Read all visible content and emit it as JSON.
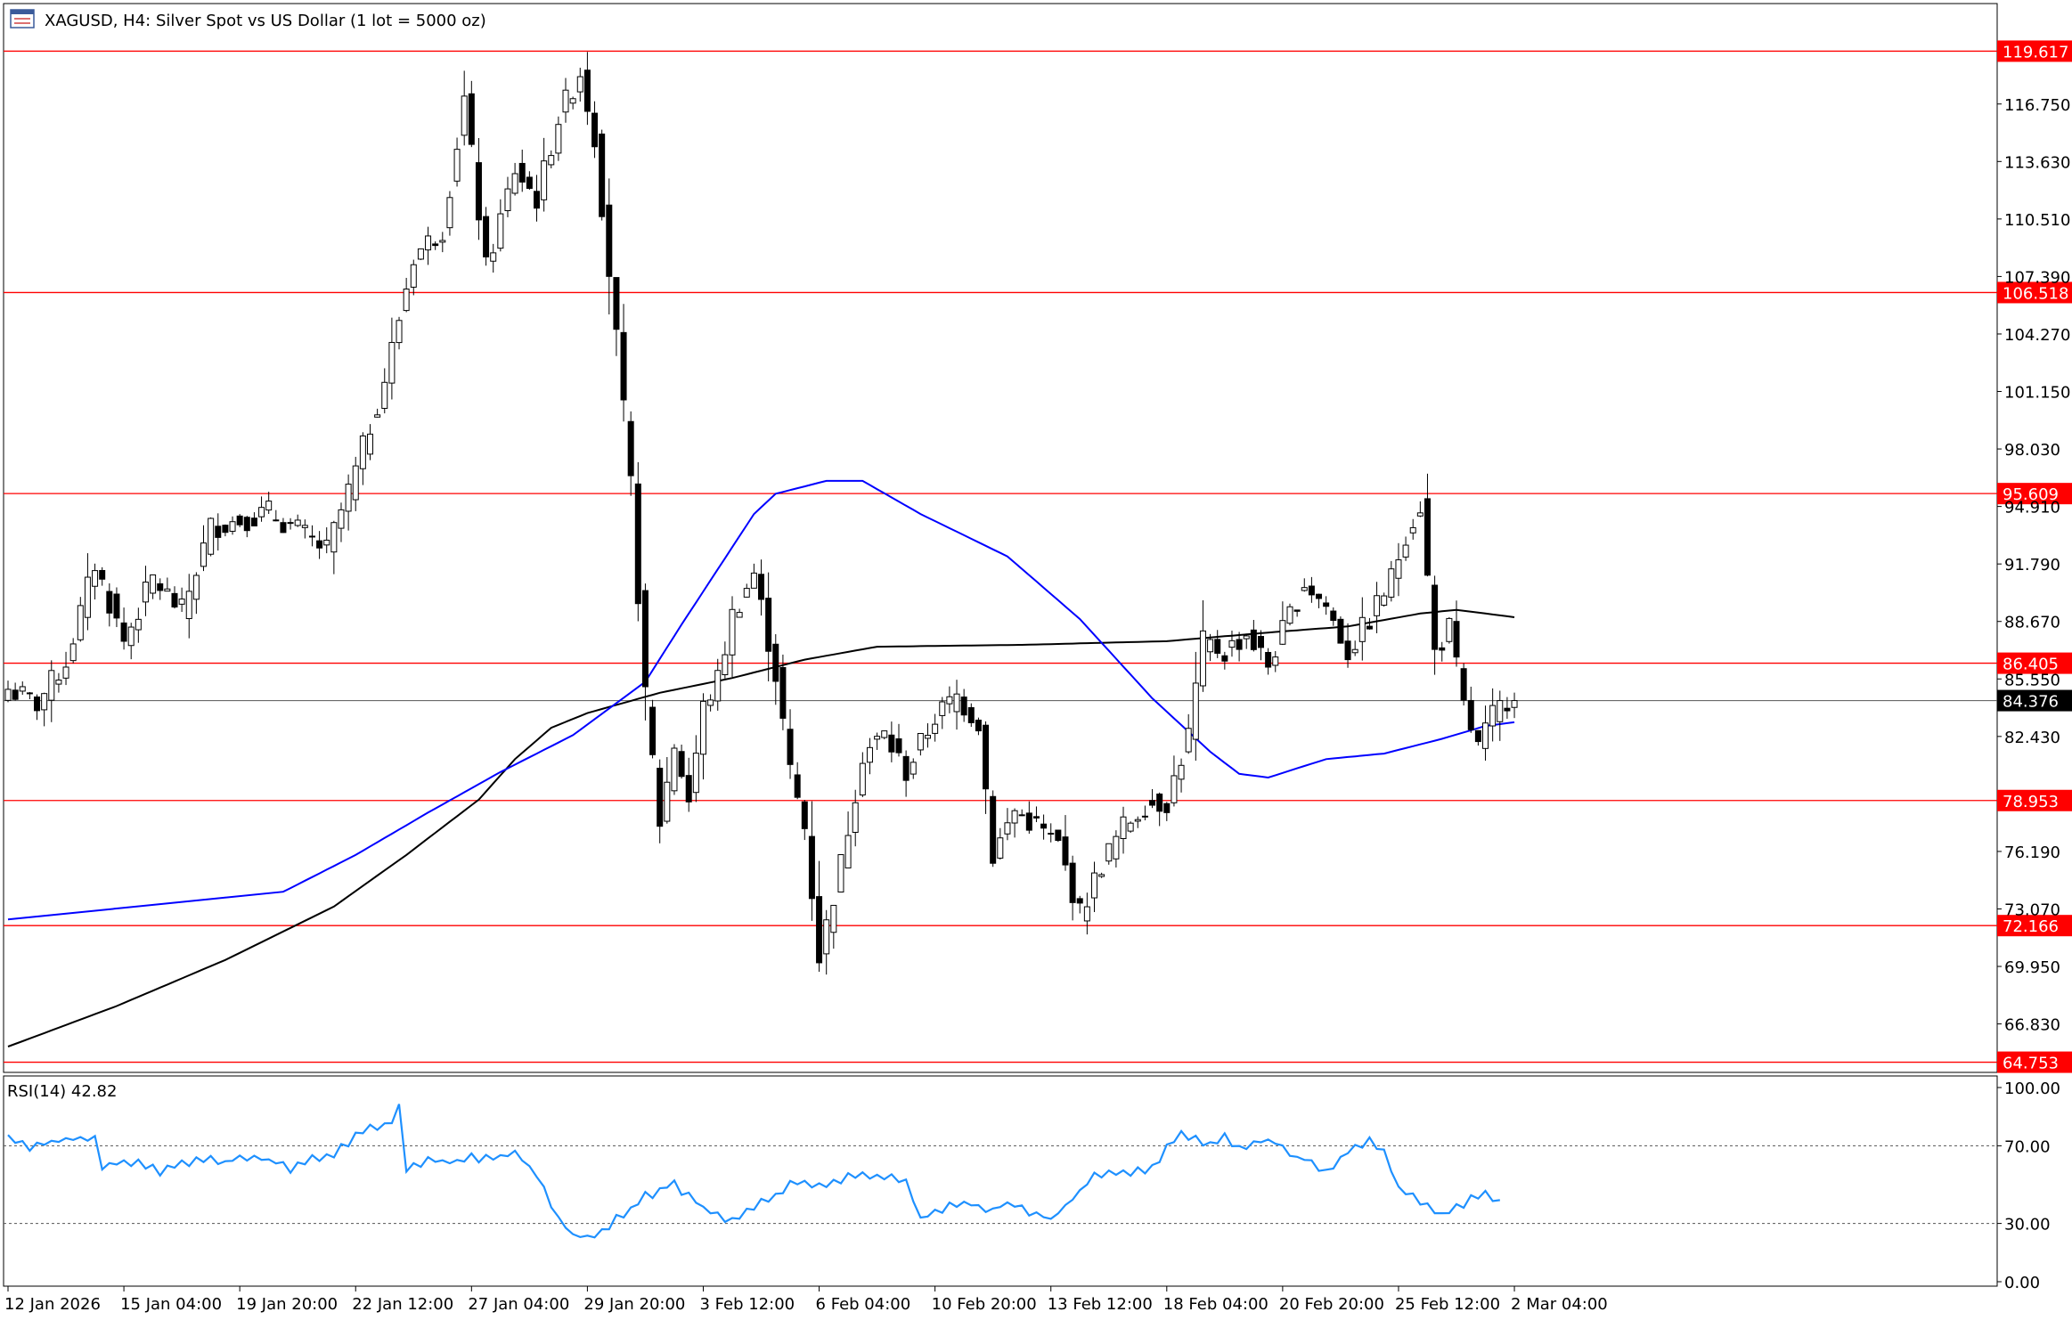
{
  "header": {
    "title": "XAGUSD, H4:  Silver Spot vs US Dollar (1 lot = 5000 oz)",
    "icon": "chart-window-icon"
  },
  "colors": {
    "bull_body": "#ffffff",
    "bear_body": "#000000",
    "candle_outline": "#000000",
    "level_line": "#ff0000",
    "level_label_bg": "#ff0000",
    "ma_fast": "#0000ff",
    "ma_slow": "#000000",
    "rsi_line": "#1e90ff",
    "current_price_bg": "#000000",
    "grid_frame": "#000000"
  },
  "chart_data": [
    {
      "type": "candlestick",
      "title": "XAGUSD, H4:  Silver Spot vs US Dollar (1 lot = 5000 oz)",
      "ylim": [
        64.2,
        122.2
      ],
      "grid": false,
      "y_ticks": [
        "116.750",
        "113.630",
        "110.510",
        "107.390",
        "104.270",
        "101.150",
        "98.030",
        "94.910",
        "91.790",
        "88.670",
        "85.550",
        "82.430",
        "76.190",
        "73.070",
        "69.950",
        "66.830"
      ],
      "y_tick_values": [
        116.75,
        113.63,
        110.51,
        107.39,
        104.27,
        101.15,
        98.03,
        94.91,
        91.79,
        88.67,
        85.55,
        82.43,
        76.19,
        73.07,
        69.95,
        66.83
      ],
      "x_ticks": [
        "12 Jan 2026",
        "15 Jan 04:00",
        "19 Jan 20:00",
        "22 Jan 12:00",
        "27 Jan 04:00",
        "29 Jan 20:00",
        "3 Feb 12:00",
        "6 Feb 04:00",
        "10 Feb 20:00",
        "13 Feb 12:00",
        "18 Feb 04:00",
        "20 Feb 20:00",
        "25 Feb 12:00",
        "2 Mar 04:00"
      ],
      "x_tick_index": [
        0,
        16,
        32,
        48,
        64,
        80,
        96,
        112,
        128,
        144,
        160,
        176,
        192,
        208
      ],
      "levels": [
        {
          "label": "119.617",
          "value": 119.617
        },
        {
          "label": "106.518",
          "value": 106.518
        },
        {
          "label": "95.609",
          "value": 95.609
        },
        {
          "label": "86.405",
          "value": 86.405
        },
        {
          "label": "78.953",
          "value": 78.953
        },
        {
          "label": "72.166",
          "value": 72.166
        },
        {
          "label": "64.753",
          "value": 64.753
        }
      ],
      "current_price": {
        "label": "84.376",
        "value": 84.376
      },
      "price_anchors": [
        [
          0,
          85.0
        ],
        [
          4,
          84.2
        ],
        [
          8,
          86.5
        ],
        [
          12,
          91.8
        ],
        [
          16,
          87.6
        ],
        [
          20,
          91.0
        ],
        [
          24,
          89.2
        ],
        [
          28,
          93.8
        ],
        [
          32,
          94.2
        ],
        [
          36,
          94.6
        ],
        [
          40,
          93.6
        ],
        [
          44,
          92.5
        ],
        [
          48,
          96.8
        ],
        [
          52,
          101.8
        ],
        [
          56,
          108.5
        ],
        [
          60,
          110.0
        ],
        [
          63,
          117.0
        ],
        [
          66,
          107.8
        ],
        [
          70,
          113.2
        ],
        [
          73,
          111.6
        ],
        [
          76,
          116.0
        ],
        [
          79,
          118.5
        ],
        [
          81,
          115.0
        ],
        [
          84,
          104.0
        ],
        [
          86,
          96.0
        ],
        [
          88,
          84.5
        ],
        [
          90,
          77.8
        ],
        [
          92,
          82.0
        ],
        [
          94,
          79.0
        ],
        [
          96,
          84.0
        ],
        [
          98,
          85.5
        ],
        [
          100,
          89.0
        ],
        [
          103,
          91.3
        ],
        [
          106,
          85.8
        ],
        [
          108,
          80.5
        ],
        [
          110,
          77.5
        ],
        [
          112,
          70.5
        ],
        [
          115,
          75.5
        ],
        [
          118,
          81.5
        ],
        [
          121,
          82.5
        ],
        [
          124,
          80.5
        ],
        [
          128,
          83.5
        ],
        [
          131,
          84.6
        ],
        [
          134,
          83.2
        ],
        [
          136,
          76.0
        ],
        [
          139,
          78.4
        ],
        [
          142,
          77.6
        ],
        [
          145,
          76.5
        ],
        [
          148,
          72.8
        ],
        [
          151,
          75.5
        ],
        [
          154,
          77.5
        ],
        [
          157,
          78.8
        ],
        [
          160,
          78.9
        ],
        [
          163,
          82.5
        ],
        [
          165,
          87.5
        ],
        [
          168,
          87.0
        ],
        [
          171,
          88.0
        ],
        [
          174,
          86.3
        ],
        [
          177,
          89.0
        ],
        [
          179,
          90.8
        ],
        [
          182,
          89.5
        ],
        [
          185,
          87.0
        ],
        [
          188,
          88.8
        ],
        [
          191,
          91.0
        ],
        [
          193,
          93.5
        ],
        [
          195,
          95.0
        ],
        [
          197,
          87.0
        ],
        [
          199,
          88.3
        ],
        [
          201,
          84.0
        ],
        [
          203,
          81.8
        ],
        [
          205,
          83.5
        ],
        [
          207,
          84.5
        ],
        [
          208,
          84.376
        ]
      ],
      "ma_fast": {
        "name": "",
        "anchors": [
          [
            0,
            74.0
          ],
          [
            10,
            76.0
          ],
          [
            20,
            78.3
          ],
          [
            30,
            80.5
          ],
          [
            40,
            82.5
          ],
          [
            50,
            85.4
          ],
          [
            55,
            88.5
          ],
          [
            60,
            91.5
          ],
          [
            65,
            94.5
          ],
          [
            68,
            95.6
          ],
          [
            75,
            96.3
          ],
          [
            80,
            96.3
          ],
          [
            88,
            94.5
          ],
          [
            100,
            92.2
          ],
          [
            110,
            88.8
          ],
          [
            120,
            84.5
          ],
          [
            128,
            81.6
          ],
          [
            132,
            80.4
          ],
          [
            136,
            80.2
          ],
          [
            144,
            81.2
          ],
          [
            152,
            81.5
          ],
          [
            160,
            82.3
          ],
          [
            166,
            83.0
          ],
          [
            170,
            83.2
          ]
        ],
        "index_offset": 38
      },
      "ma_slow": {
        "name": "",
        "anchors": [
          [
            0,
            65.6
          ],
          [
            15,
            67.8
          ],
          [
            30,
            70.3
          ],
          [
            45,
            73.2
          ],
          [
            55,
            76.0
          ],
          [
            65,
            79.0
          ],
          [
            70,
            81.2
          ],
          [
            75,
            82.9
          ],
          [
            80,
            83.7
          ],
          [
            90,
            84.8
          ],
          [
            100,
            85.6
          ],
          [
            110,
            86.6
          ],
          [
            120,
            87.3
          ],
          [
            140,
            87.4
          ],
          [
            160,
            87.6
          ],
          [
            175,
            88.1
          ],
          [
            185,
            88.4
          ],
          [
            195,
            89.1
          ],
          [
            200,
            89.3
          ],
          [
            208,
            88.9
          ]
        ]
      }
    },
    {
      "type": "line",
      "title": "RSI(14) 42.82",
      "ylim": [
        0,
        100
      ],
      "y_ticks": [
        "100.00",
        "70.00",
        "30.00",
        "0.00"
      ],
      "y_tick_values": [
        100,
        70,
        30,
        0
      ],
      "levels_dotted": [
        70,
        30
      ],
      "series": [
        {
          "name": "RSI(14)",
          "anchors": [
            [
              0,
              74
            ],
            [
              3,
              68
            ],
            [
              6,
              72
            ],
            [
              9,
              73
            ],
            [
              12,
              75
            ],
            [
              13,
              60
            ],
            [
              15,
              62
            ],
            [
              18,
              62
            ],
            [
              21,
              56
            ],
            [
              24,
              61
            ],
            [
              27,
              64
            ],
            [
              30,
              62
            ],
            [
              33,
              63
            ],
            [
              36,
              63
            ],
            [
              39,
              58
            ],
            [
              42,
              63
            ],
            [
              45,
              66
            ],
            [
              47,
              72
            ],
            [
              50,
              79
            ],
            [
              53,
              82
            ],
            [
              54,
              90
            ],
            [
              55,
              58
            ],
            [
              58,
              63
            ],
            [
              61,
              62
            ],
            [
              64,
              64
            ],
            [
              67,
              63
            ],
            [
              70,
              66
            ],
            [
              73,
              56
            ],
            [
              76,
              33
            ],
            [
              78,
              24
            ],
            [
              80,
              22
            ],
            [
              82,
              25
            ],
            [
              84,
              33
            ],
            [
              86,
              38
            ],
            [
              88,
              44
            ],
            [
              90,
              47
            ],
            [
              92,
              50
            ],
            [
              94,
              44
            ],
            [
              96,
              38
            ],
            [
              98,
              35
            ],
            [
              100,
              31
            ],
            [
              102,
              37
            ],
            [
              104,
              41
            ],
            [
              106,
              45
            ],
            [
              108,
              50
            ],
            [
              110,
              51
            ],
            [
              112,
              50
            ],
            [
              114,
              52
            ],
            [
              116,
              54
            ],
            [
              118,
              55
            ],
            [
              120,
              53
            ],
            [
              122,
              55
            ],
            [
              124,
              52
            ],
            [
              126,
              33
            ],
            [
              128,
              35
            ],
            [
              130,
              39
            ],
            [
              132,
              41
            ],
            [
              134,
              39
            ],
            [
              136,
              37
            ],
            [
              138,
              40
            ],
            [
              140,
              38
            ],
            [
              142,
              35
            ],
            [
              144,
              32
            ],
            [
              146,
              39
            ],
            [
              148,
              47
            ],
            [
              150,
              54
            ],
            [
              152,
              56
            ],
            [
              154,
              55
            ],
            [
              156,
              57
            ],
            [
              158,
              58
            ],
            [
              160,
              70
            ],
            [
              162,
              77
            ],
            [
              164,
              74
            ],
            [
              166,
              71
            ],
            [
              168,
              75
            ],
            [
              170,
              68
            ],
            [
              172,
              71
            ],
            [
              174,
              73
            ],
            [
              176,
              70
            ],
            [
              178,
              64
            ],
            [
              180,
              62
            ],
            [
              182,
              56
            ],
            [
              184,
              63
            ],
            [
              186,
              70
            ],
            [
              188,
              72
            ],
            [
              190,
              68
            ],
            [
              192,
              48
            ],
            [
              194,
              45
            ],
            [
              196,
              38
            ],
            [
              198,
              35
            ],
            [
              200,
              38
            ],
            [
              202,
              43
            ],
            [
              204,
              45
            ],
            [
              206,
              42
            ]
          ]
        }
      ]
    }
  ]
}
